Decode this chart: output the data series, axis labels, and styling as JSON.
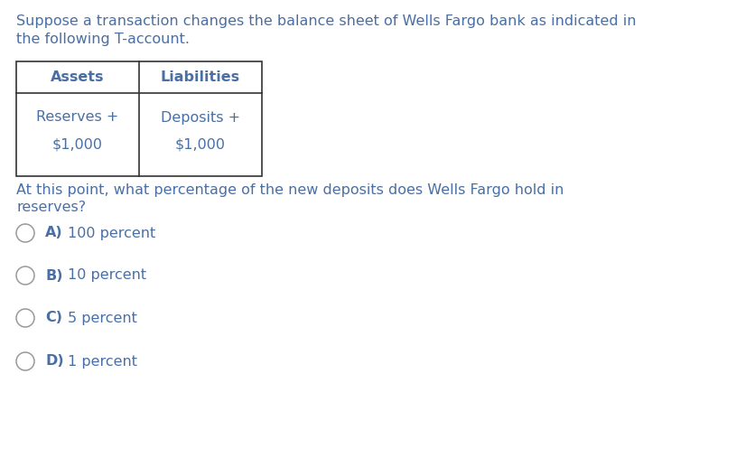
{
  "background_color": "#ffffff",
  "text_color": "#4a6fa5",
  "intro_line1": "Suppose a transaction changes the balance sheet of Wells Fargo bank as indicated in",
  "intro_line2": "the following T-account.",
  "table": {
    "col1_header": "Assets",
    "col2_header": "Liabilities",
    "col1_row1": "Reserves +",
    "col1_row2": "$1,000",
    "col2_row1": "Deposits +",
    "col2_row2": "$1,000"
  },
  "question_line1": "At this point, what percentage of the new deposits does Wells Fargo hold in",
  "question_line2": "reserves?",
  "options": [
    {
      "label": "A)",
      "text": "100 percent"
    },
    {
      "label": "B)",
      "text": "10 percent"
    },
    {
      "label": "C)",
      "text": "5 percent"
    },
    {
      "label": "D)",
      "text": "1 percent"
    }
  ],
  "text_color_dark": "#4a6fa5",
  "circle_color": "#999999",
  "font_size_main": 11.5,
  "font_size_table": 11.5,
  "font_size_option_label": 11.5,
  "font_size_option_text": 11.5
}
